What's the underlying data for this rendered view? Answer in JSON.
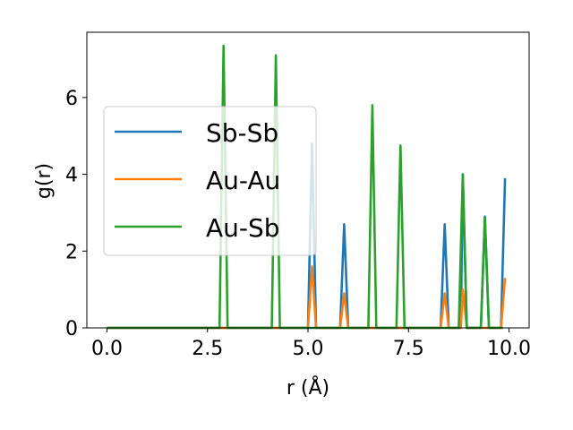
{
  "chart_data": {
    "type": "line",
    "title": "",
    "xlabel": "r (Å)",
    "ylabel": "g(r)",
    "xlim": [
      -0.5,
      10.5
    ],
    "ylim": [
      0,
      7.7
    ],
    "xticks": [
      0.0,
      2.5,
      5.0,
      7.5,
      10.0
    ],
    "xtick_labels": [
      "0.0",
      "2.5",
      "5.0",
      "7.5",
      "10.0"
    ],
    "yticks": [
      0,
      2,
      4,
      6
    ],
    "ytick_labels": [
      "0",
      "2",
      "4",
      "6"
    ],
    "grid": false,
    "legend_position": "center-left",
    "series": [
      {
        "name": "Sb-Sb",
        "color": "#1f77b4",
        "points": [
          [
            0,
            0
          ],
          [
            5.0,
            0
          ],
          [
            5.1,
            4.8
          ],
          [
            5.2,
            0
          ],
          [
            5.8,
            0
          ],
          [
            5.9,
            2.7
          ],
          [
            6.0,
            0
          ],
          [
            8.3,
            0
          ],
          [
            8.4,
            2.7
          ],
          [
            8.5,
            0
          ],
          [
            8.8,
            0
          ],
          [
            8.85,
            4.0
          ],
          [
            8.95,
            0
          ],
          [
            9.3,
            0
          ],
          [
            9.4,
            2.9
          ],
          [
            9.5,
            0
          ],
          [
            9.8,
            0
          ],
          [
            9.9,
            3.9
          ]
        ]
      },
      {
        "name": "Au-Au",
        "color": "#ff7f0e",
        "points": [
          [
            0,
            0
          ],
          [
            5.0,
            0
          ],
          [
            5.1,
            1.6
          ],
          [
            5.2,
            0
          ],
          [
            5.8,
            0
          ],
          [
            5.9,
            0.9
          ],
          [
            6.0,
            0
          ],
          [
            8.3,
            0
          ],
          [
            8.4,
            0.9
          ],
          [
            8.5,
            0
          ],
          [
            8.8,
            0
          ],
          [
            8.85,
            1.0
          ],
          [
            8.95,
            0
          ],
          [
            9.8,
            0
          ],
          [
            9.9,
            1.3
          ]
        ]
      },
      {
        "name": "Au-Sb",
        "color": "#2ca02c",
        "points": [
          [
            0,
            0
          ],
          [
            2.8,
            0
          ],
          [
            2.9,
            7.35
          ],
          [
            3.0,
            0
          ],
          [
            4.1,
            0
          ],
          [
            4.2,
            7.1
          ],
          [
            4.3,
            0
          ],
          [
            6.5,
            0
          ],
          [
            6.6,
            5.8
          ],
          [
            6.7,
            0
          ],
          [
            7.2,
            0
          ],
          [
            7.3,
            4.75
          ],
          [
            7.4,
            0
          ],
          [
            8.75,
            0
          ],
          [
            8.85,
            4.0
          ],
          [
            8.95,
            0
          ],
          [
            9.3,
            0
          ],
          [
            9.4,
            2.87
          ],
          [
            9.5,
            0
          ],
          [
            9.85,
            0
          ]
        ]
      }
    ]
  }
}
